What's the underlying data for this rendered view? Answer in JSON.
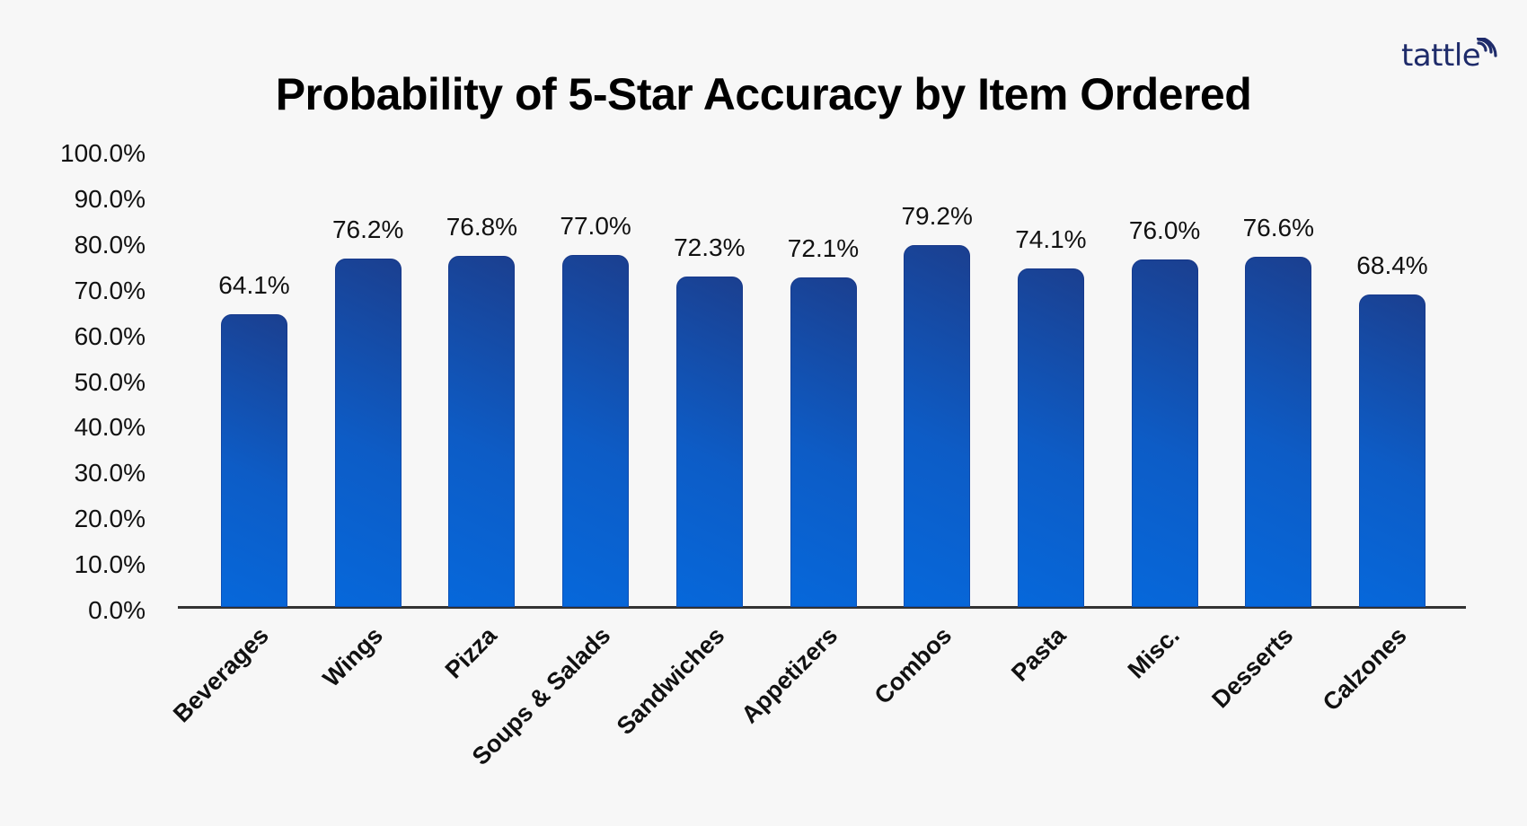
{
  "header": {
    "title": "Probability of 5-Star Accuracy by Item Ordered",
    "logo_text": "tattle",
    "logo_icon": "signal-waves-icon"
  },
  "colors": {
    "background": "#f7f7f7",
    "bar_light": "#0668db",
    "bar_dark": "#1b3f8f",
    "logo": "#1e2b6a",
    "axis": "#333333"
  },
  "y_ticks": [
    "100.0%",
    "90.0%",
    "80.0%",
    "70.0%",
    "60.0%",
    "50.0%",
    "40.0%",
    "30.0%",
    "20.0%",
    "10.0%",
    "0.0%"
  ],
  "bars": [
    {
      "category": "Beverages",
      "value": 64.1,
      "label": "64.1%"
    },
    {
      "category": "Wings",
      "value": 76.2,
      "label": "76.2%"
    },
    {
      "category": "Pizza",
      "value": 76.8,
      "label": "76.8%"
    },
    {
      "category": "Soups & Salads",
      "value": 77.0,
      "label": "77.0%"
    },
    {
      "category": "Sandwiches",
      "value": 72.3,
      "label": "72.3%"
    },
    {
      "category": "Appetizers",
      "value": 72.1,
      "label": "72.1%"
    },
    {
      "category": "Combos",
      "value": 79.2,
      "label": "79.2%"
    },
    {
      "category": "Pasta",
      "value": 74.1,
      "label": "74.1%"
    },
    {
      "category": "Misc.",
      "value": 76.0,
      "label": "76.0%"
    },
    {
      "category": "Desserts",
      "value": 76.6,
      "label": "76.6%"
    },
    {
      "category": "Calzones",
      "value": 68.4,
      "label": "68.4%"
    }
  ],
  "chart_data": {
    "type": "bar",
    "title": "Probability of 5-Star Accuracy by Item Ordered",
    "xlabel": "",
    "ylabel": "",
    "categories": [
      "Beverages",
      "Wings",
      "Pizza",
      "Soups & Salads",
      "Sandwiches",
      "Appetizers",
      "Combos",
      "Pasta",
      "Misc.",
      "Desserts",
      "Calzones"
    ],
    "values": [
      64.1,
      76.2,
      76.8,
      77.0,
      72.3,
      72.1,
      79.2,
      74.1,
      76.0,
      76.6,
      68.4
    ],
    "value_format": "percent_1dp",
    "ylim": [
      0,
      100
    ],
    "y_tick_step": 10,
    "grid": false,
    "legend": null,
    "data_labels": true
  }
}
